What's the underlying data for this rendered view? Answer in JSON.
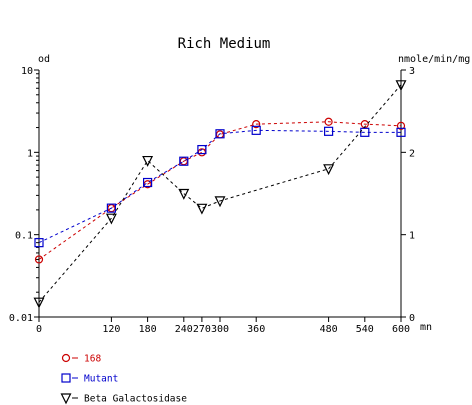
{
  "chart_data": {
    "type": "line",
    "title": "Rich Medium",
    "xlabel": "mn",
    "ylabel_left": "od",
    "ylabel_right": "nmole/min/mg",
    "x_ticks": [
      0,
      120,
      180,
      240,
      270,
      300,
      360,
      480,
      540,
      600
    ],
    "x_tick_labels": [
      "0",
      "120",
      "180",
      "240",
      "270",
      "300",
      "360",
      "480",
      "540",
      "600"
    ],
    "xlim": [
      0,
      600
    ],
    "y_left": {
      "scale": "log",
      "range": [
        0.01,
        10
      ],
      "ticks": [
        0.01,
        0.1,
        1,
        10
      ],
      "tick_labels": [
        "0.01",
        "0.1",
        "1",
        "10"
      ]
    },
    "y_right": {
      "scale": "linear",
      "range": [
        0,
        3
      ],
      "ticks": [
        0,
        1,
        2,
        3
      ],
      "tick_labels": [
        "0",
        "1",
        "2",
        "3"
      ]
    },
    "grid": false,
    "legend_position": "bottom-left",
    "series": [
      {
        "name": "168",
        "axis": "left",
        "color": "#cc0000",
        "marker": "circle",
        "x": [
          0,
          120,
          180,
          240,
          270,
          300,
          360,
          480,
          540,
          600
        ],
        "y": [
          0.05,
          0.21,
          0.41,
          0.78,
          1.0,
          1.65,
          2.2,
          2.35,
          2.2,
          2.1
        ]
      },
      {
        "name": "Mutant",
        "axis": "left",
        "color": "#0000cc",
        "marker": "square",
        "x": [
          0,
          120,
          180,
          240,
          270,
          300,
          360,
          480,
          540,
          600
        ],
        "y": [
          0.08,
          0.21,
          0.43,
          0.78,
          1.08,
          1.68,
          1.85,
          1.8,
          1.75,
          1.75
        ]
      },
      {
        "name": "Beta Galactosidase",
        "axis": "right",
        "color": "#000000",
        "marker": "triangle-down",
        "x": [
          0,
          120,
          180,
          240,
          270,
          300,
          480,
          600
        ],
        "y": [
          0.18,
          1.2,
          1.9,
          1.5,
          1.32,
          1.41,
          1.8,
          2.82
        ]
      }
    ]
  }
}
